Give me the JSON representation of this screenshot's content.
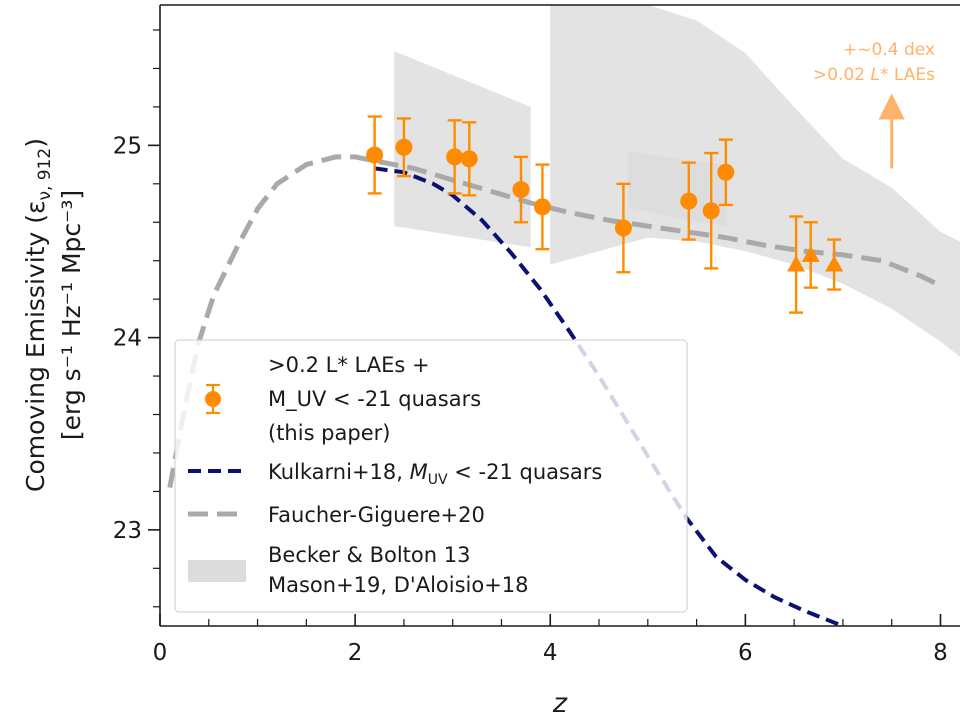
{
  "chart_data": {
    "type": "scatter",
    "xlabel": "z",
    "ylabel_line1": "Comoving Emissivity (ε",
    "ylabel_line1_sub": "ν, 912",
    "ylabel_line1_end": ")",
    "ylabel_line2": "[erg s⁻¹ Hz⁻¹ Mpc⁻³]",
    "xlim": [
      0,
      8.2
    ],
    "ylim": [
      22.5,
      25.73
    ],
    "x_ticks": [
      0,
      2,
      4,
      6,
      8
    ],
    "x_tick_labels": [
      "0",
      "2",
      "4",
      "6",
      "8"
    ],
    "y_ticks": [
      23,
      24,
      25
    ],
    "y_tick_labels": [
      "23",
      "24",
      "25"
    ],
    "grid": false,
    "legend_position": "lower-left",
    "colors": {
      "points": "#ff8c00",
      "kulkarni": "#0a1172",
      "faucher": "#a9a9a9",
      "shaded": "#dcdcdc",
      "annotation": "#ffb26b"
    },
    "series": [
      {
        "name_line1": ">0.2 L* LAEs +",
        "name_line2": "M_UV < -21  quasars",
        "name_line3": "(this paper)",
        "kind": "errorbar",
        "points": [
          {
            "x": 2.2,
            "y": 24.95,
            "yerr": 0.2,
            "marker": "circle"
          },
          {
            "x": 2.5,
            "y": 24.99,
            "yerr": 0.15,
            "marker": "circle"
          },
          {
            "x": 3.02,
            "y": 24.94,
            "yerr": 0.19,
            "marker": "circle"
          },
          {
            "x": 3.17,
            "y": 24.93,
            "yerr": 0.19,
            "marker": "circle"
          },
          {
            "x": 3.7,
            "y": 24.77,
            "yerr": 0.17,
            "marker": "circle"
          },
          {
            "x": 3.92,
            "y": 24.68,
            "yerr": 0.22,
            "marker": "circle"
          },
          {
            "x": 4.75,
            "y": 24.57,
            "yerr": 0.23,
            "marker": "circle"
          },
          {
            "x": 5.42,
            "y": 24.71,
            "yerr": 0.2,
            "marker": "circle"
          },
          {
            "x": 5.65,
            "y": 24.66,
            "yerr": 0.3,
            "marker": "circle"
          },
          {
            "x": 5.8,
            "y": 24.86,
            "yerr": 0.17,
            "marker": "circle"
          },
          {
            "x": 6.52,
            "y": 24.38,
            "yerr": 0.25,
            "marker": "triangle"
          },
          {
            "x": 6.67,
            "y": 24.43,
            "yerr": 0.17,
            "marker": "triangle"
          },
          {
            "x": 6.91,
            "y": 24.38,
            "yerr": 0.13,
            "marker": "triangle"
          }
        ]
      },
      {
        "name": "Kulkarni+18, M_UV < -21 quasars",
        "legend_prefix": "Kulkarni+18, ",
        "legend_suffix": " < -21 quasars",
        "kind": "line",
        "style": "dashed",
        "x": [
          2.2,
          2.5,
          2.8,
          3.0,
          3.3,
          3.6,
          3.9,
          4.2,
          4.5,
          4.8,
          5.1,
          5.4,
          5.7,
          6.0,
          6.3,
          6.6,
          6.9,
          7.0
        ],
        "y": [
          24.88,
          24.86,
          24.8,
          24.74,
          24.61,
          24.44,
          24.25,
          24.03,
          23.8,
          23.55,
          23.3,
          23.06,
          22.86,
          22.74,
          22.65,
          22.58,
          22.52,
          22.5
        ]
      },
      {
        "name": "Faucher-Giguere+20",
        "kind": "line",
        "style": "dashed",
        "x": [
          0.1,
          0.25,
          0.4,
          0.55,
          0.8,
          1.0,
          1.2,
          1.5,
          1.8,
          2.0,
          2.3,
          2.6,
          3.0,
          3.4,
          3.8,
          4.2,
          4.6,
          5.0,
          5.4,
          5.8,
          6.2,
          6.6,
          7.0,
          7.4,
          7.8,
          8.0
        ],
        "y": [
          23.22,
          23.63,
          23.98,
          24.22,
          24.48,
          24.67,
          24.8,
          24.9,
          24.94,
          24.94,
          24.91,
          24.88,
          24.82,
          24.76,
          24.7,
          24.65,
          24.61,
          24.58,
          24.55,
          24.52,
          24.48,
          24.45,
          24.43,
          24.4,
          24.32,
          24.27
        ]
      },
      {
        "name_line1": "Becker & Bolton 13",
        "name_line2": "Mason+19, D'Aloisio+18",
        "kind": "band",
        "bands": [
          {
            "x": [
              2.4,
              3.8
            ],
            "upper": [
              25.49,
              25.2
            ],
            "lower": [
              24.58,
              24.47
            ]
          },
          {
            "x": [
              4.0,
              4.5,
              5.0,
              5.5,
              6.0,
              6.5,
              7.0,
              7.5,
              8.0,
              8.2
            ],
            "upper": [
              25.73,
              25.73,
              25.73,
              25.65,
              25.48,
              25.2,
              24.93,
              24.78,
              24.55,
              24.5
            ],
            "lower": [
              24.38,
              24.45,
              24.52,
              24.5,
              24.45,
              24.38,
              24.28,
              24.15,
              23.98,
              23.9
            ]
          },
          {
            "x": [
              4.8,
              5.3,
              5.8
            ],
            "upper": [
              24.97,
              24.93,
              24.9
            ],
            "lower": [
              24.68,
              24.62,
              24.58
            ]
          }
        ]
      }
    ],
    "annotations": [
      {
        "line1": "+~0.4 dex",
        "line2_prefix": ">0.02 ",
        "line2_star": "L",
        "line2_suffix": "* LAEs",
        "arrow_x": 7.5,
        "arrow_from_y": 24.88,
        "arrow_to_y": 25.27
      }
    ]
  }
}
